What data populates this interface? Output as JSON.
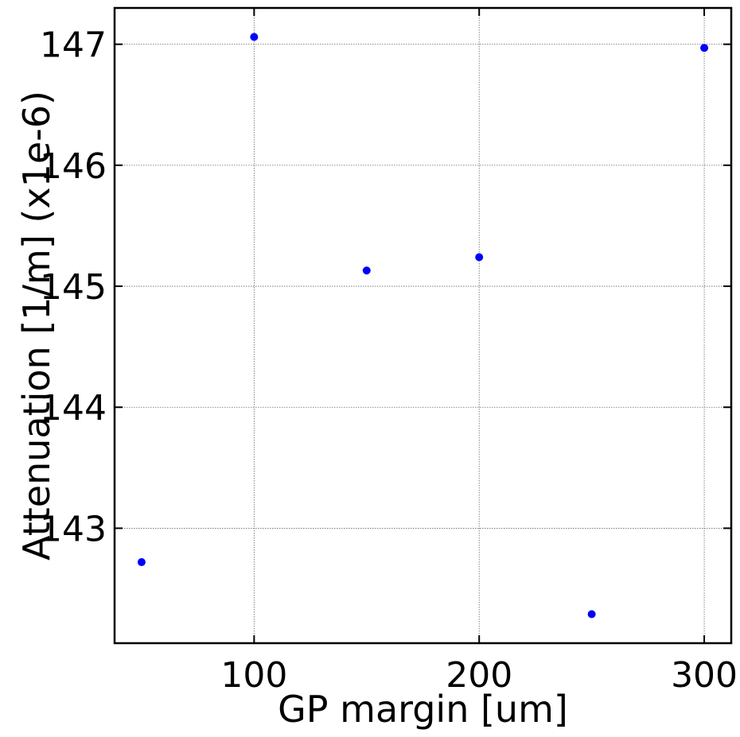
{
  "chart_data": {
    "type": "scatter",
    "title": "",
    "xlabel": "GP margin [um]",
    "ylabel": "Attenuation [1/m] (x1e-6)",
    "xlim": [
      38,
      312
    ],
    "ylim": [
      142.05,
      147.3
    ],
    "xticks": [
      100,
      200,
      300
    ],
    "yticks": [
      143,
      144,
      145,
      146,
      147
    ],
    "grid": true,
    "marker_color": "#0000ff",
    "series": [
      {
        "x": [
          50,
          100,
          150,
          200,
          250,
          300
        ],
        "y": [
          142.72,
          147.06,
          145.13,
          145.24,
          142.29,
          146.97
        ]
      }
    ]
  }
}
